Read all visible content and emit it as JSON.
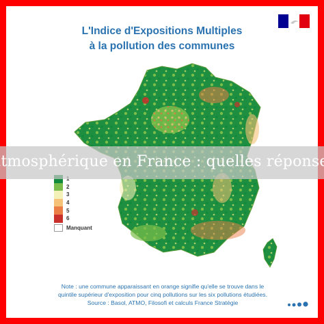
{
  "title_line1": "L'Indice d'Expositions Multiples",
  "title_line2": "à la pollution des communes",
  "banner_text": "atmosphérique en France : quelles réponses p",
  "legend": [
    {
      "label": "1",
      "color": "#118a3c"
    },
    {
      "label": "2",
      "color": "#7bbd4a"
    },
    {
      "label": "3",
      "color": "#f3f0b8"
    },
    {
      "label": "4",
      "color": "#f5c277"
    },
    {
      "label": "5",
      "color": "#ea7e45"
    },
    {
      "label": "6",
      "color": "#c9302b"
    }
  ],
  "legend_missing_label": "Manquant",
  "note_line1": "Note : une commune apparaissant en orange signifie qu'elle se trouve dans le",
  "note_line2": "quintile supérieur d'exposition pour cinq pollutions sur les six pollutions étudiées.",
  "source_line": "Source : Basol, ATMO, Filosofi et calculs France Stratégie",
  "colors": {
    "frame": "#ff0000",
    "title": "#2a73b0",
    "flag_blue": "#000091",
    "flag_red": "#e1000f"
  }
}
